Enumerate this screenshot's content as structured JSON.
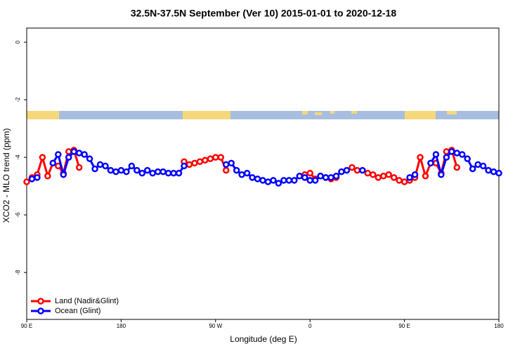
{
  "chart_data": {
    "type": "line",
    "title": "32.5N-37.5N September (Ver 10)   2015-01-01 to 2020-12-18",
    "x_label": "Longitude (deg E)",
    "y_label": "XCO2 - MLO trend (ppm)",
    "x": [
      90,
      95,
      100,
      105,
      110,
      115,
      120,
      125,
      130,
      135,
      140,
      145,
      150,
      155,
      160,
      165,
      170,
      175,
      180,
      185,
      190,
      195,
      200,
      205,
      210,
      215,
      220,
      225,
      230,
      235,
      240,
      245,
      250,
      255,
      260,
      265,
      270,
      275,
      280,
      285,
      290,
      295,
      300,
      305,
      310,
      315,
      320,
      325,
      330,
      335,
      340,
      345,
      350,
      355,
      360,
      365,
      370,
      375,
      380,
      385,
      390,
      395,
      400,
      405,
      410,
      415,
      420,
      425,
      430,
      435,
      440,
      445,
      450,
      455,
      460,
      465,
      470,
      475,
      480,
      485,
      490,
      495,
      500,
      505,
      510,
      515,
      520,
      525,
      530,
      535,
      540
    ],
    "series": [
      {
        "name": "Land (Nadir&Glint)",
        "color": "#ff0000",
        "values": [
          -4.85,
          -4.7,
          -4.6,
          -4.0,
          -4.65,
          -4.2,
          -4.3,
          -4.55,
          -3.8,
          -3.75,
          -4.35,
          null,
          null,
          null,
          null,
          null,
          null,
          null,
          null,
          null,
          null,
          null,
          null,
          null,
          null,
          null,
          null,
          null,
          null,
          null,
          -4.15,
          -4.25,
          -4.2,
          -4.15,
          -4.1,
          -4.05,
          -4.0,
          -4.0,
          -4.45,
          null,
          null,
          null,
          null,
          null,
          null,
          null,
          null,
          null,
          null,
          null,
          null,
          null,
          null,
          -4.6,
          -4.55,
          -4.75,
          -4.65,
          -4.7,
          -4.75,
          -4.7,
          null,
          null,
          -4.35,
          -4.45,
          null,
          -4.55,
          -4.6,
          -4.7,
          -4.65,
          -4.6,
          -4.7,
          -4.8,
          -4.85,
          -4.8,
          -4.7,
          -4.0,
          -4.65,
          -4.2,
          -4.2,
          -4.55,
          -3.8,
          -3.75,
          -4.35,
          null,
          null,
          null,
          null,
          null,
          null,
          null,
          null
        ]
      },
      {
        "name": "Ocean (Glint)",
        "color": "#0000ff",
        "values": [
          null,
          -4.75,
          -4.7,
          null,
          null,
          -4.2,
          -3.9,
          -4.6,
          -4.0,
          -3.8,
          -3.85,
          -3.9,
          -4.05,
          -4.4,
          -4.25,
          -4.3,
          -4.45,
          -4.5,
          -4.45,
          -4.5,
          -4.3,
          -4.45,
          -4.55,
          -4.45,
          -4.55,
          -4.5,
          -4.5,
          -4.55,
          -4.55,
          -4.55,
          -4.3,
          null,
          null,
          null,
          null,
          null,
          null,
          null,
          -4.25,
          -4.2,
          -4.45,
          -4.6,
          -4.55,
          -4.7,
          -4.75,
          -4.8,
          -4.85,
          -4.8,
          -4.9,
          -4.8,
          -4.8,
          -4.8,
          -4.65,
          -4.7,
          -4.8,
          -4.8,
          -4.65,
          -4.7,
          -4.7,
          -4.65,
          -4.5,
          -4.45,
          null,
          null,
          -4.45,
          null,
          null,
          null,
          null,
          null,
          null,
          null,
          null,
          -4.7,
          -4.6,
          null,
          null,
          -4.2,
          -3.9,
          -4.6,
          -4.0,
          -3.8,
          -3.85,
          -3.9,
          -4.05,
          -4.4,
          -4.25,
          -4.3,
          -4.45,
          -4.5,
          -4.55
        ]
      }
    ],
    "xlim": [
      90,
      540
    ],
    "xticks": [
      {
        "value": 90,
        "label": "90 E"
      },
      180,
      {
        "value": 270,
        "label": "90 W"
      },
      {
        "value": 360,
        "label": "0"
      },
      {
        "value": 450,
        "label": "90 E"
      },
      {
        "value": 540,
        "label": "180"
      }
    ],
    "ylim": [
      -9.63,
      0.49
    ],
    "yticks": [
      0,
      -2,
      -4,
      -6,
      -8
    ],
    "legend": "bottom-left"
  }
}
